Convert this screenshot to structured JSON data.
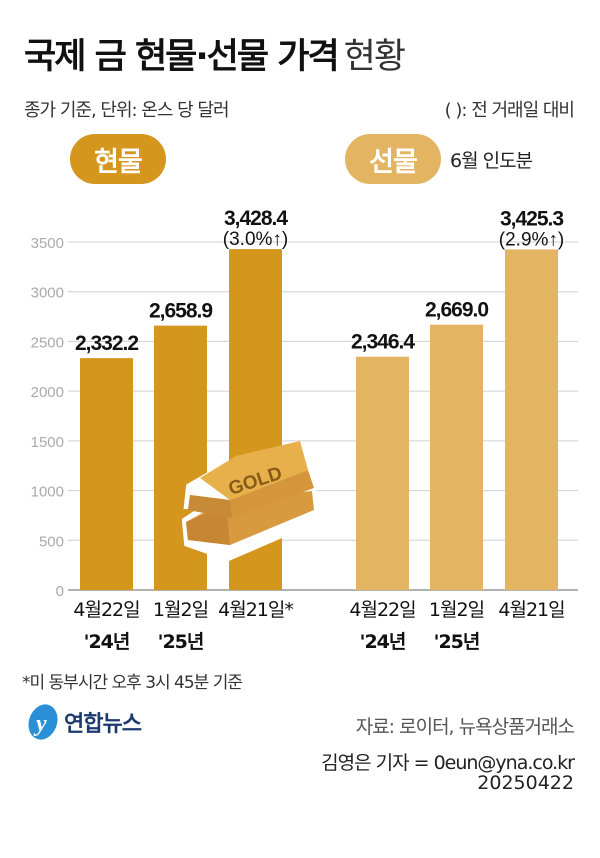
{
  "header": {
    "title_bold": "국제 금 현물·선물 가격",
    "title_light": "현황",
    "subtitle": "종가 기준, 단위: 온스 당 달러",
    "paren_note": "( ): 전 거래일 대비"
  },
  "groups": {
    "spot_label": "현물",
    "futures_label": "선물",
    "futures_note": "6월 인도분"
  },
  "colors": {
    "spot": "#D4961C",
    "futures": "#E3B563",
    "grid": "#d0d0d0"
  },
  "chart_data": {
    "type": "bar",
    "title": "국제 금 현물·선물 가격 현황",
    "ylabel": "온스 당 달러",
    "ylim": [
      0,
      3500
    ],
    "yticks": [
      0,
      500,
      1000,
      1500,
      2000,
      2500,
      3000,
      3500
    ],
    "grid": true,
    "series": [
      {
        "name": "현물",
        "categories": [
          [
            "4월22일",
            "'24년"
          ],
          [
            "1월2일",
            "'25년"
          ],
          [
            "4월21일*",
            ""
          ]
        ],
        "values": [
          2332.2,
          2658.9,
          3428.4
        ],
        "labels": [
          "2,332.2",
          "2,658.9",
          "3,428.4"
        ],
        "change": "(3.0%↑)"
      },
      {
        "name": "선물",
        "categories": [
          [
            "4월22일",
            "'24년"
          ],
          [
            "1월2일",
            "'25년"
          ],
          [
            "4월21일",
            ""
          ]
        ],
        "values": [
          2346.4,
          2669.0,
          3425.3
        ],
        "labels": [
          "2,346.4",
          "2,669.0",
          "3,425.3"
        ],
        "change": "(2.9%↑)"
      }
    ]
  },
  "illustration": {
    "gold_bar_text": "GOLD"
  },
  "footer": {
    "footnote": "*미 동부시간 오후 3시 45분 기준",
    "logo_text": "연합뉴스",
    "source": "자료: 로이터, 뉴욕상품거래소",
    "credit": "김영은 기자 = 0eun@yna.co.kr",
    "date": "20250422"
  }
}
